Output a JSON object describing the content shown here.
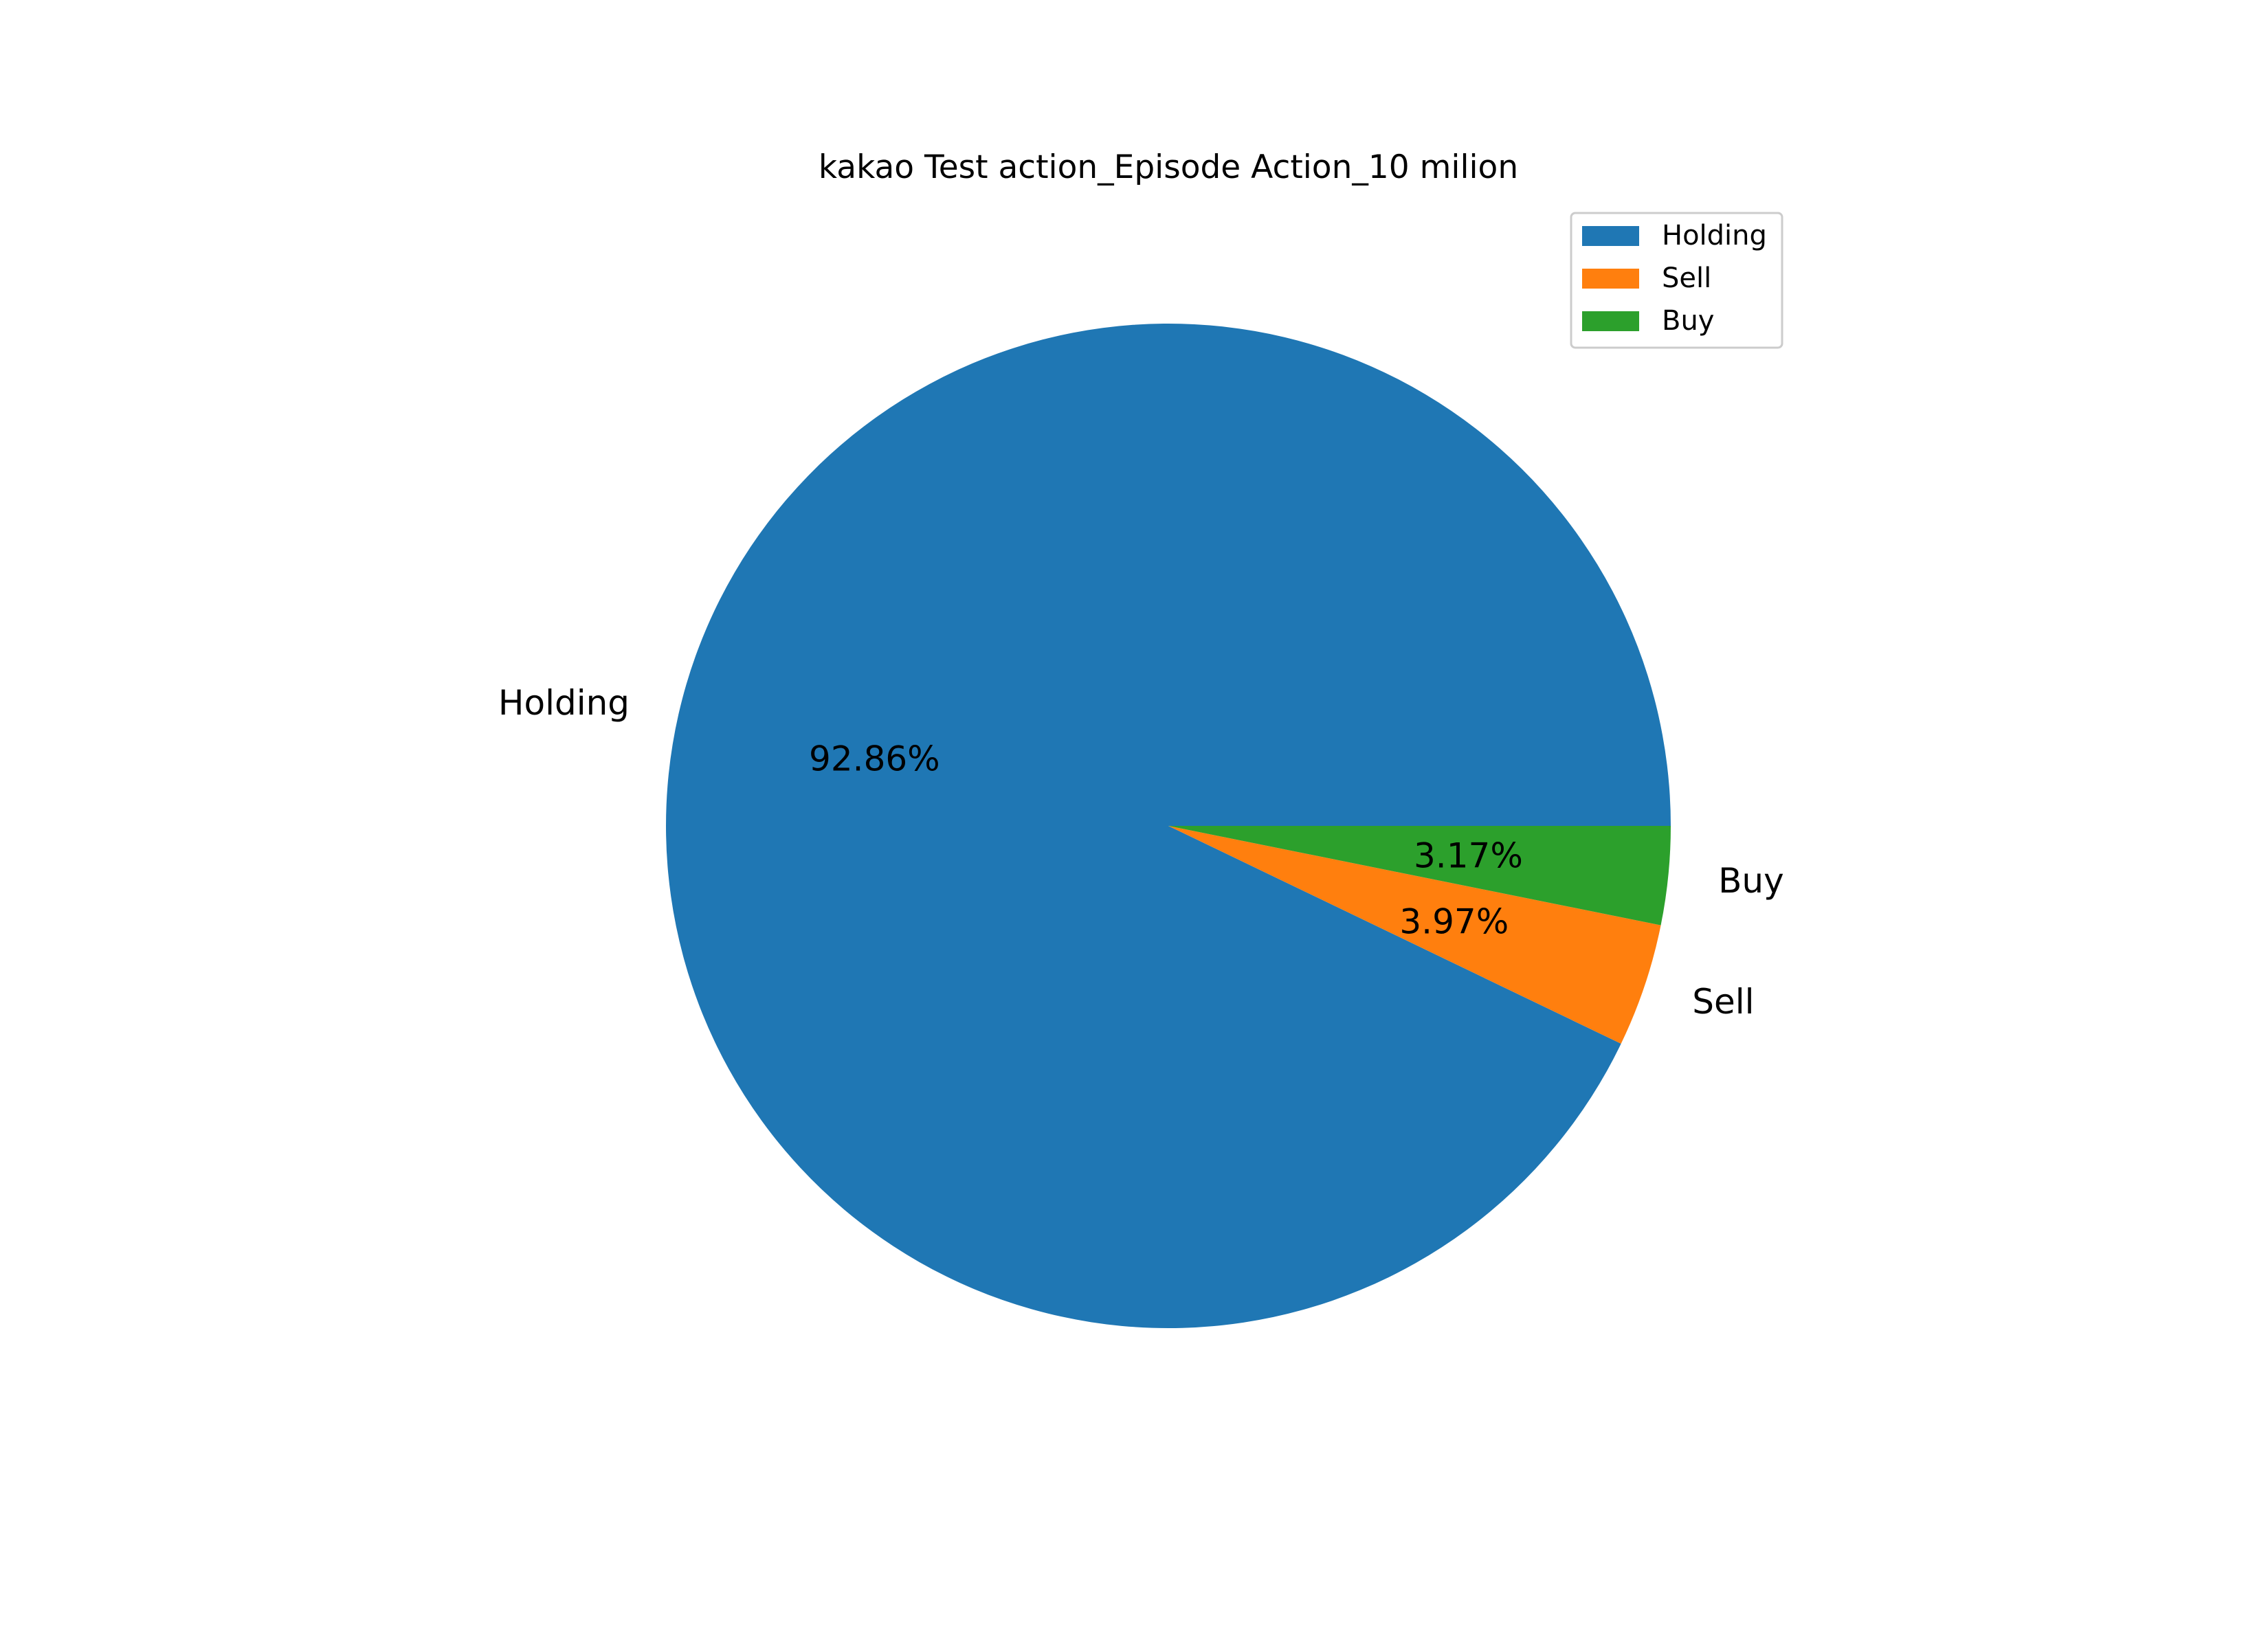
{
  "chart_data": {
    "type": "pie",
    "title": "kakao Test action_Episode Action_10 milion",
    "slices": [
      {
        "label": "Holding",
        "value": 92.86,
        "pct_label": "92.86%",
        "color": "#1f77b4"
      },
      {
        "label": "Sell",
        "value": 3.97,
        "pct_label": "3.97%",
        "color": "#ff7f0e"
      },
      {
        "label": "Buy",
        "value": 3.17,
        "pct_label": "3.17%",
        "color": "#2ca02c"
      }
    ],
    "start_angle_deg": 0,
    "direction": "counterclockwise",
    "legend": {
      "placement": "top-right",
      "entries": [
        "Holding",
        "Sell",
        "Buy"
      ]
    }
  }
}
